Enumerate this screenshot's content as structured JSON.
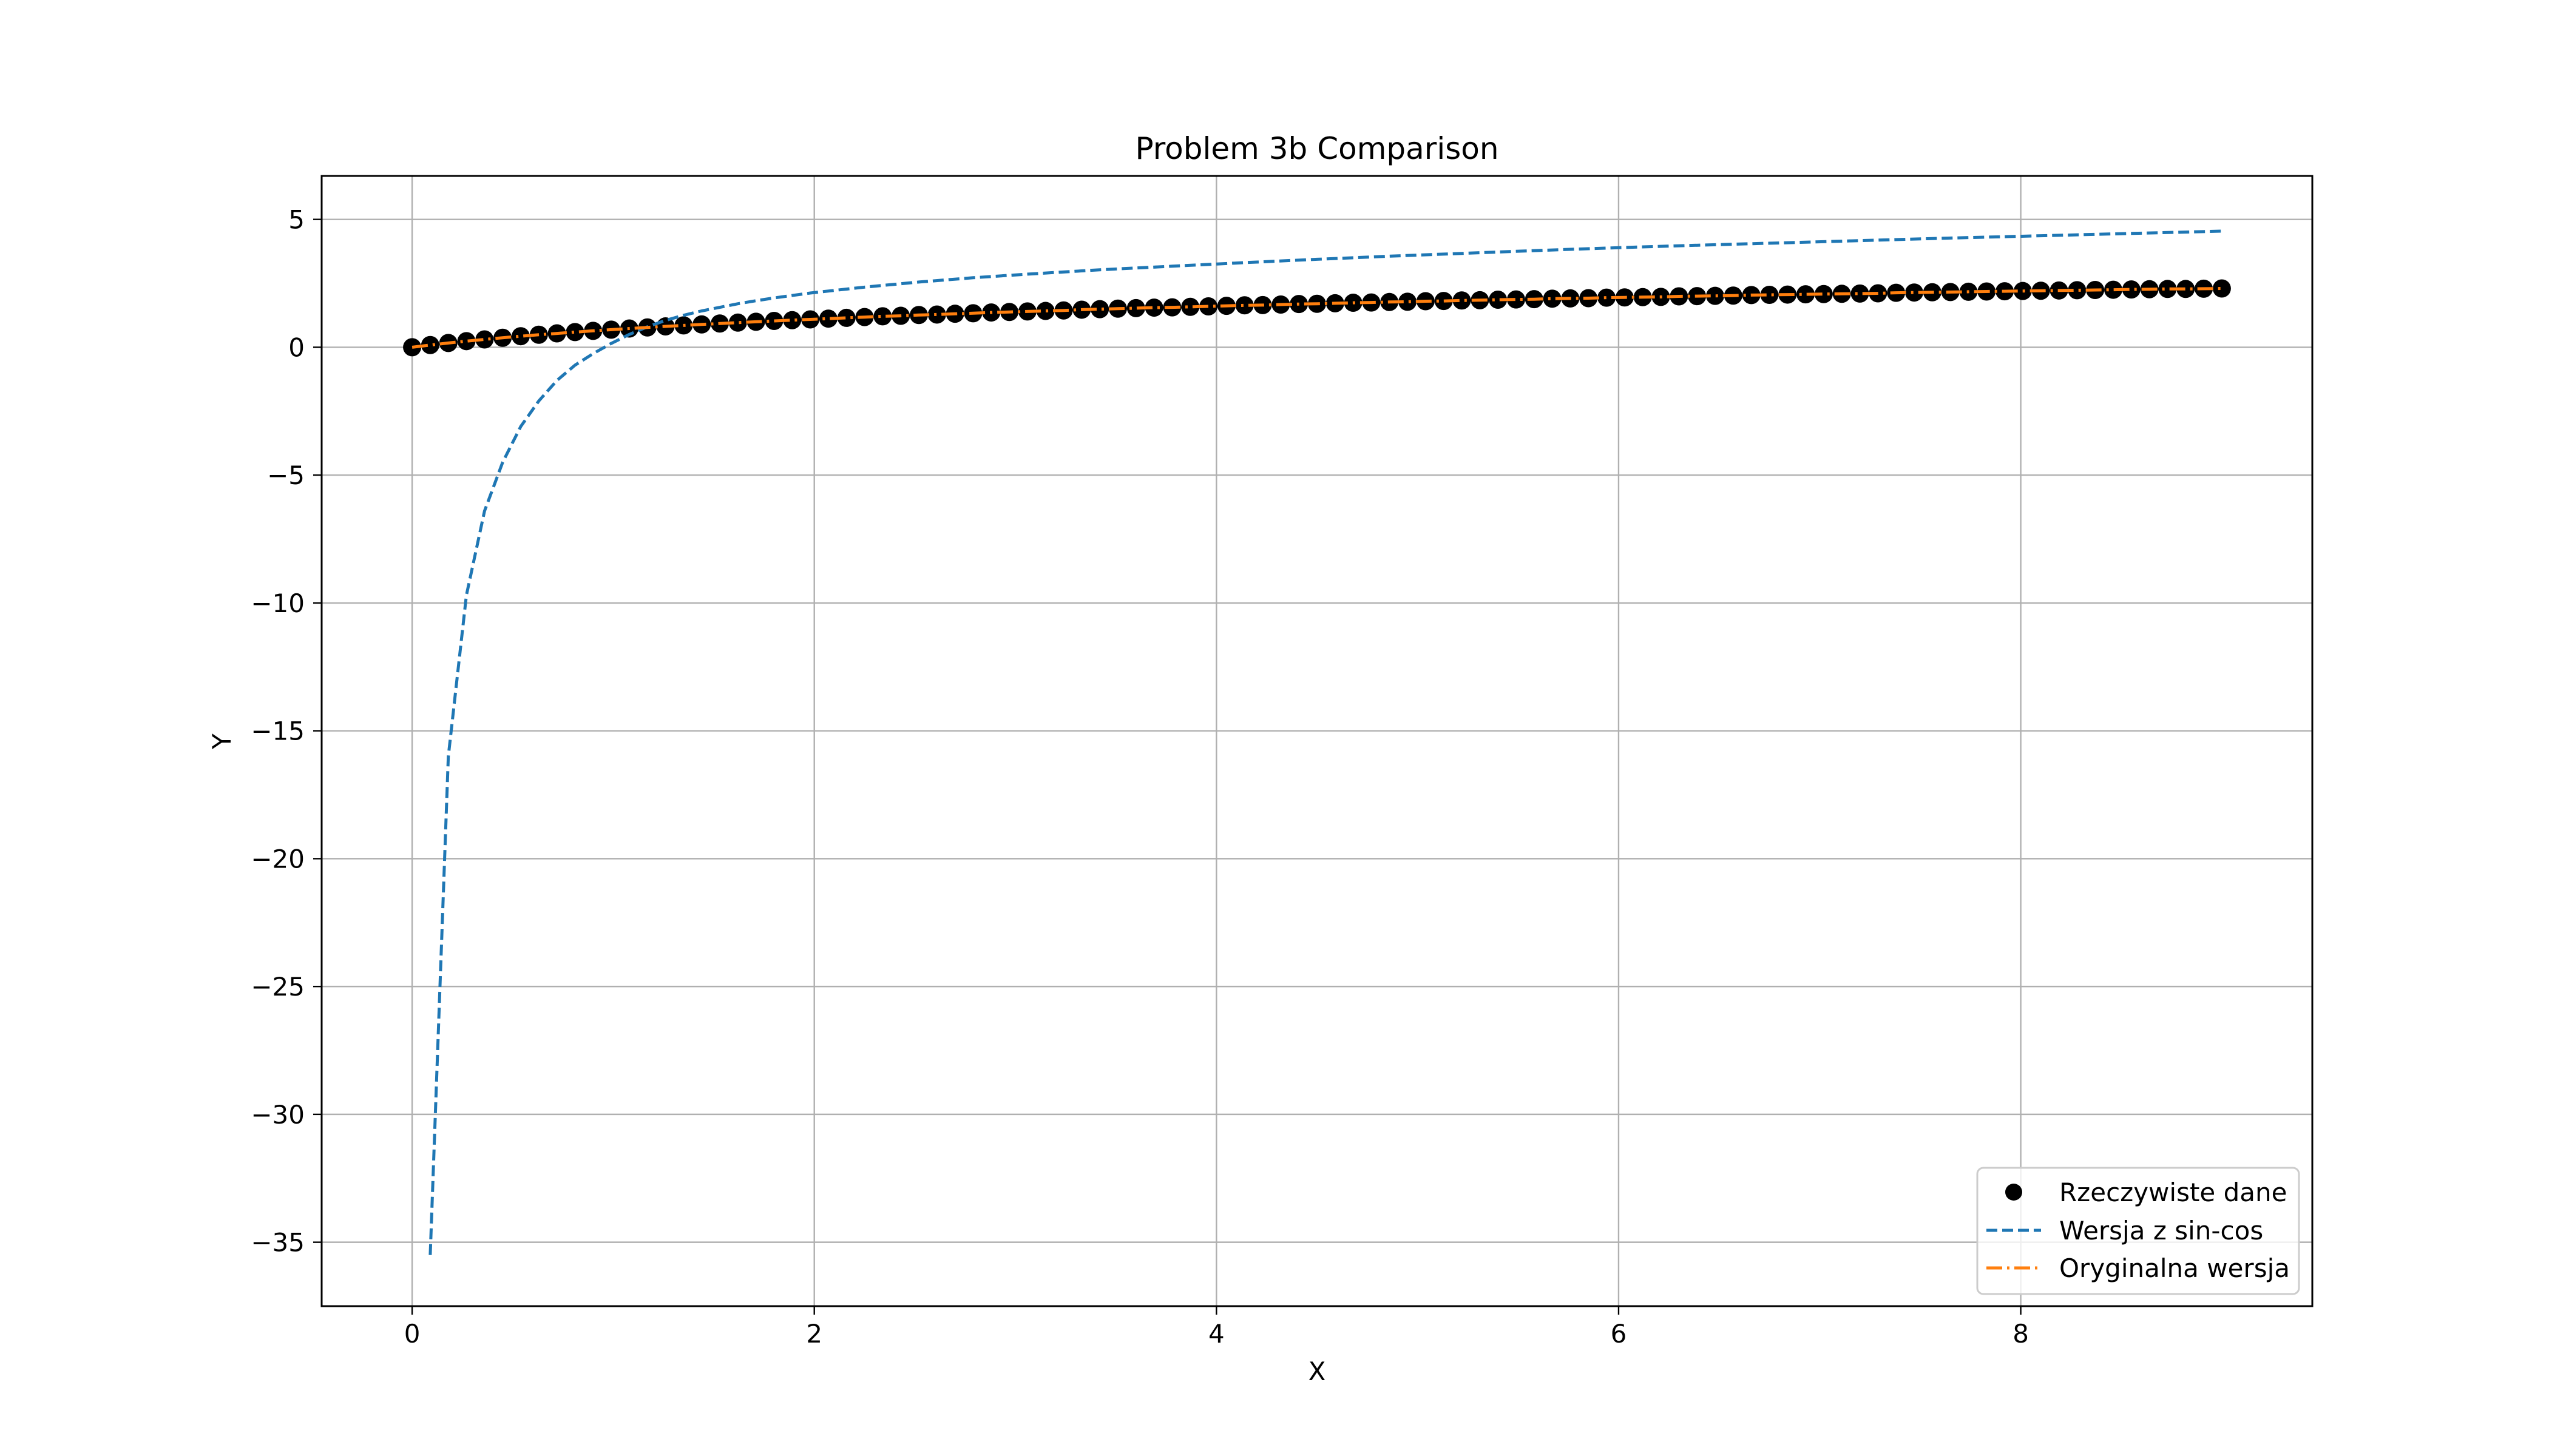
{
  "chart_data": {
    "type": "line",
    "title": "Problem 3b Comparison",
    "xlabel": "X",
    "ylabel": "Y",
    "xlim": [
      -0.45,
      9.45
    ],
    "ylim": [
      -37.5,
      6.7
    ],
    "xticks": [
      0,
      2,
      4,
      6,
      8
    ],
    "yticks": [
      5,
      0,
      -5,
      -10,
      -15,
      -20,
      -25,
      -30,
      -35
    ],
    "xtick_labels": [
      "0",
      "2",
      "4",
      "6",
      "8"
    ],
    "ytick_labels": [
      "5",
      "0",
      "−5",
      "−10",
      "−15",
      "−20",
      "−25",
      "−30",
      "−35"
    ],
    "grid": true,
    "legend_position": "lower-right",
    "series": [
      {
        "name": "Rzeczywiste dane",
        "kind": "scatter",
        "color": "#000000",
        "points": [
          [
            0,
            0.0
          ],
          [
            0.09,
            0.086
          ],
          [
            0.18,
            0.166
          ],
          [
            0.27,
            0.239
          ],
          [
            0.36,
            0.307
          ],
          [
            0.45,
            0.372
          ],
          [
            0.54,
            0.432
          ],
          [
            0.63,
            0.489
          ],
          [
            0.72,
            0.542
          ],
          [
            0.81,
            0.593
          ],
          [
            0.9,
            0.642
          ],
          [
            0.99,
            0.688
          ],
          [
            1.08,
            0.732
          ],
          [
            1.17,
            0.775
          ],
          [
            1.26,
            0.815
          ],
          [
            1.35,
            0.854
          ],
          [
            1.44,
            0.892
          ],
          [
            1.53,
            0.928
          ],
          [
            1.62,
            0.963
          ],
          [
            1.71,
            0.996
          ],
          [
            1.8,
            1.03
          ],
          [
            1.89,
            1.06
          ],
          [
            1.98,
            1.09
          ],
          [
            2.07,
            1.12
          ],
          [
            2.16,
            1.15
          ],
          [
            2.25,
            1.18
          ],
          [
            2.34,
            1.21
          ],
          [
            2.43,
            1.23
          ],
          [
            2.52,
            1.26
          ],
          [
            2.61,
            1.28
          ],
          [
            2.7,
            1.31
          ],
          [
            2.79,
            1.33
          ],
          [
            2.88,
            1.36
          ],
          [
            2.97,
            1.38
          ],
          [
            3.06,
            1.4
          ],
          [
            3.15,
            1.42
          ],
          [
            3.24,
            1.44
          ],
          [
            3.33,
            1.47
          ],
          [
            3.42,
            1.49
          ],
          [
            3.51,
            1.51
          ],
          [
            3.6,
            1.53
          ],
          [
            3.69,
            1.55
          ],
          [
            3.78,
            1.56
          ],
          [
            3.87,
            1.58
          ],
          [
            3.96,
            1.6
          ],
          [
            4.05,
            1.62
          ],
          [
            4.14,
            1.64
          ],
          [
            4.23,
            1.65
          ],
          [
            4.32,
            1.67
          ],
          [
            4.41,
            1.69
          ],
          [
            4.5,
            1.7
          ],
          [
            4.59,
            1.72
          ],
          [
            4.68,
            1.74
          ],
          [
            4.77,
            1.75
          ],
          [
            4.86,
            1.77
          ],
          [
            4.95,
            1.78
          ],
          [
            5.04,
            1.8
          ],
          [
            5.13,
            1.81
          ],
          [
            5.22,
            1.83
          ],
          [
            5.31,
            1.84
          ],
          [
            5.4,
            1.86
          ],
          [
            5.49,
            1.87
          ],
          [
            5.58,
            1.88
          ],
          [
            5.67,
            1.9
          ],
          [
            5.76,
            1.91
          ],
          [
            5.85,
            1.92
          ],
          [
            5.94,
            1.94
          ],
          [
            6.03,
            1.95
          ],
          [
            6.12,
            1.96
          ],
          [
            6.21,
            1.97
          ],
          [
            6.3,
            1.99
          ],
          [
            6.39,
            2.0
          ],
          [
            6.48,
            2.01
          ],
          [
            6.57,
            2.02
          ],
          [
            6.66,
            2.04
          ],
          [
            6.75,
            2.05
          ],
          [
            6.84,
            2.06
          ],
          [
            6.93,
            2.07
          ],
          [
            7.02,
            2.08
          ],
          [
            7.11,
            2.09
          ],
          [
            7.2,
            2.1
          ],
          [
            7.29,
            2.11
          ],
          [
            7.38,
            2.13
          ],
          [
            7.47,
            2.14
          ],
          [
            7.56,
            2.15
          ],
          [
            7.65,
            2.16
          ],
          [
            7.74,
            2.17
          ],
          [
            7.83,
            2.18
          ],
          [
            7.92,
            2.19
          ],
          [
            8.01,
            2.2
          ],
          [
            8.1,
            2.21
          ],
          [
            8.19,
            2.22
          ],
          [
            8.28,
            2.23
          ],
          [
            8.37,
            2.24
          ],
          [
            8.46,
            2.25
          ],
          [
            8.55,
            2.26
          ],
          [
            8.64,
            2.27
          ],
          [
            8.73,
            2.28
          ],
          [
            8.82,
            2.28
          ],
          [
            8.91,
            2.29
          ],
          [
            9.0,
            2.3
          ]
        ]
      },
      {
        "name": "Wersja z sin-cos",
        "kind": "line",
        "style": "dashed",
        "color": "#1f77b4",
        "points": [
          [
            0.09,
            -35.5
          ],
          [
            0.18,
            -16.0
          ],
          [
            0.27,
            -9.7
          ],
          [
            0.36,
            -6.4
          ],
          [
            0.45,
            -4.5
          ],
          [
            0.54,
            -3.1
          ],
          [
            0.63,
            -2.1
          ],
          [
            0.72,
            -1.3
          ],
          [
            0.81,
            -0.7
          ],
          [
            0.9,
            -0.25
          ],
          [
            0.99,
            0.15
          ],
          [
            1.08,
            0.5
          ],
          [
            1.17,
            0.8
          ],
          [
            1.26,
            1.05
          ],
          [
            1.35,
            1.25
          ],
          [
            1.44,
            1.42
          ],
          [
            1.53,
            1.56
          ],
          [
            1.62,
            1.7
          ],
          [
            1.71,
            1.82
          ],
          [
            1.8,
            1.93
          ],
          [
            1.98,
            2.12
          ],
          [
            2.25,
            2.35
          ],
          [
            2.52,
            2.55
          ],
          [
            2.79,
            2.72
          ],
          [
            3.06,
            2.86
          ],
          [
            3.42,
            3.03
          ],
          [
            3.78,
            3.17
          ],
          [
            4.14,
            3.31
          ],
          [
            4.5,
            3.44
          ],
          [
            4.86,
            3.56
          ],
          [
            5.22,
            3.67
          ],
          [
            5.58,
            3.78
          ],
          [
            5.94,
            3.88
          ],
          [
            6.3,
            3.97
          ],
          [
            6.75,
            4.07
          ],
          [
            7.2,
            4.17
          ],
          [
            7.65,
            4.27
          ],
          [
            8.1,
            4.36
          ],
          [
            8.55,
            4.45
          ],
          [
            9.0,
            4.54
          ]
        ]
      },
      {
        "name": "Oryginalna wersja",
        "kind": "line",
        "style": "dashdot",
        "color": "#ff7f0e",
        "points": [
          [
            0,
            0.0
          ],
          [
            0.09,
            0.086
          ],
          [
            0.18,
            0.166
          ],
          [
            0.27,
            0.239
          ],
          [
            0.36,
            0.307
          ],
          [
            0.45,
            0.372
          ],
          [
            0.54,
            0.432
          ],
          [
            0.63,
            0.489
          ],
          [
            0.72,
            0.542
          ],
          [
            0.81,
            0.593
          ],
          [
            0.9,
            0.642
          ],
          [
            0.99,
            0.688
          ],
          [
            1.08,
            0.732
          ],
          [
            1.17,
            0.775
          ],
          [
            1.26,
            0.815
          ],
          [
            1.35,
            0.854
          ],
          [
            1.44,
            0.892
          ],
          [
            1.53,
            0.928
          ],
          [
            1.62,
            0.963
          ],
          [
            1.71,
            0.996
          ],
          [
            1.8,
            1.03
          ],
          [
            1.89,
            1.06
          ],
          [
            1.98,
            1.09
          ],
          [
            2.07,
            1.12
          ],
          [
            2.16,
            1.15
          ],
          [
            2.25,
            1.18
          ],
          [
            2.34,
            1.21
          ],
          [
            2.43,
            1.23
          ],
          [
            2.52,
            1.26
          ],
          [
            2.61,
            1.28
          ],
          [
            2.7,
            1.31
          ],
          [
            2.79,
            1.33
          ],
          [
            2.88,
            1.36
          ],
          [
            2.97,
            1.38
          ],
          [
            3.06,
            1.4
          ],
          [
            3.15,
            1.42
          ],
          [
            3.24,
            1.44
          ],
          [
            3.33,
            1.47
          ],
          [
            3.42,
            1.49
          ],
          [
            3.51,
            1.51
          ],
          [
            3.6,
            1.53
          ],
          [
            3.69,
            1.55
          ],
          [
            3.78,
            1.56
          ],
          [
            3.87,
            1.58
          ],
          [
            3.96,
            1.6
          ],
          [
            4.05,
            1.62
          ],
          [
            4.14,
            1.64
          ],
          [
            4.23,
            1.65
          ],
          [
            4.32,
            1.67
          ],
          [
            4.41,
            1.69
          ],
          [
            4.5,
            1.7
          ],
          [
            4.59,
            1.72
          ],
          [
            4.68,
            1.74
          ],
          [
            4.77,
            1.75
          ],
          [
            4.86,
            1.77
          ],
          [
            4.95,
            1.78
          ],
          [
            5.04,
            1.8
          ],
          [
            5.13,
            1.81
          ],
          [
            5.22,
            1.83
          ],
          [
            5.31,
            1.84
          ],
          [
            5.4,
            1.86
          ],
          [
            5.49,
            1.87
          ],
          [
            5.58,
            1.88
          ],
          [
            5.67,
            1.9
          ],
          [
            5.76,
            1.91
          ],
          [
            5.85,
            1.92
          ],
          [
            5.94,
            1.94
          ],
          [
            6.03,
            1.95
          ],
          [
            6.12,
            1.96
          ],
          [
            6.21,
            1.97
          ],
          [
            6.3,
            1.99
          ],
          [
            6.39,
            2.0
          ],
          [
            6.48,
            2.01
          ],
          [
            6.57,
            2.02
          ],
          [
            6.66,
            2.04
          ],
          [
            6.75,
            2.05
          ],
          [
            6.84,
            2.06
          ],
          [
            6.93,
            2.07
          ],
          [
            7.02,
            2.08
          ],
          [
            7.11,
            2.09
          ],
          [
            7.2,
            2.1
          ],
          [
            7.29,
            2.11
          ],
          [
            7.38,
            2.13
          ],
          [
            7.47,
            2.14
          ],
          [
            7.56,
            2.15
          ],
          [
            7.65,
            2.16
          ],
          [
            7.74,
            2.17
          ],
          [
            7.83,
            2.18
          ],
          [
            7.92,
            2.19
          ],
          [
            8.01,
            2.2
          ],
          [
            8.1,
            2.21
          ],
          [
            8.19,
            2.22
          ],
          [
            8.28,
            2.23
          ],
          [
            8.37,
            2.24
          ],
          [
            8.46,
            2.25
          ],
          [
            8.55,
            2.26
          ],
          [
            8.64,
            2.27
          ],
          [
            8.73,
            2.28
          ],
          [
            8.82,
            2.28
          ],
          [
            8.91,
            2.29
          ],
          [
            9.0,
            2.3
          ]
        ]
      }
    ]
  }
}
